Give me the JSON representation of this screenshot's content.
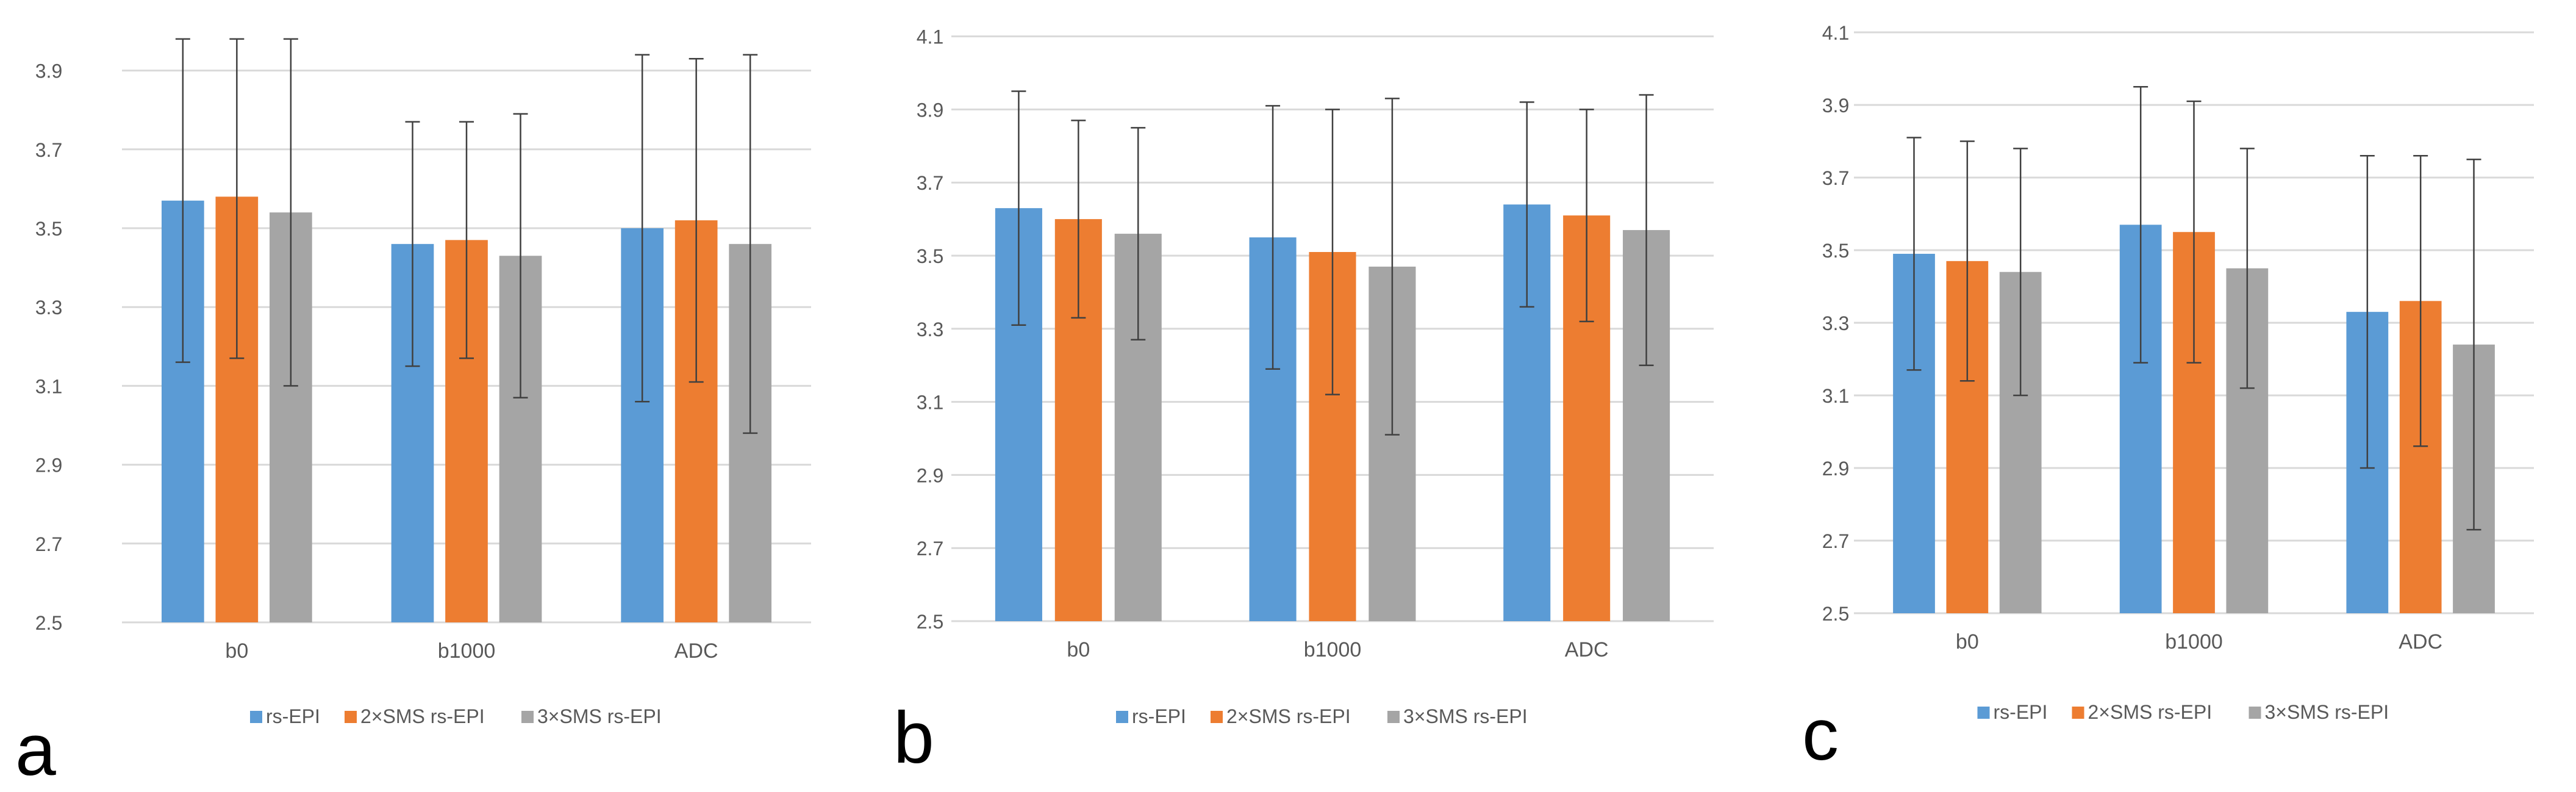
{
  "colors": {
    "series": [
      "#5B9BD5",
      "#ED7D31",
      "#A5A5A5"
    ],
    "grid": "#D9D9D9",
    "axis_text": "#595959",
    "error_bar": "#404040"
  },
  "chart_data": [
    {
      "type": "bar",
      "panel_label": "a",
      "categories": [
        "b0",
        "b1000",
        "ADC"
      ],
      "series": [
        {
          "name": "rs-EPI",
          "values": [
            3.57,
            3.46,
            3.5
          ],
          "err_low": [
            3.16,
            3.15,
            3.06
          ],
          "err_high": [
            3.98,
            3.77,
            3.94
          ]
        },
        {
          "name": "2×SMS rs-EPI",
          "values": [
            3.58,
            3.47,
            3.52
          ],
          "err_low": [
            3.17,
            3.17,
            3.11
          ],
          "err_high": [
            3.98,
            3.77,
            3.93
          ]
        },
        {
          "name": "3×SMS rs-EPI",
          "values": [
            3.54,
            3.43,
            3.46
          ],
          "err_low": [
            3.1,
            3.07,
            2.98
          ],
          "err_high": [
            3.98,
            3.79,
            3.94
          ]
        }
      ],
      "yticks": [
        "2.5",
        "2.7",
        "2.9",
        "3.1",
        "3.3",
        "3.5",
        "3.7",
        "3.9"
      ],
      "ylim": [
        2.5,
        4.0
      ],
      "grid": true,
      "legend": "bottom"
    },
    {
      "type": "bar",
      "panel_label": "b",
      "categories": [
        "b0",
        "b1000",
        "ADC"
      ],
      "series": [
        {
          "name": "rs-EPI",
          "values": [
            3.63,
            3.55,
            3.64
          ],
          "err_low": [
            3.31,
            3.19,
            3.36
          ],
          "err_high": [
            3.95,
            3.91,
            3.92
          ]
        },
        {
          "name": "2×SMS rs-EPI",
          "values": [
            3.6,
            3.51,
            3.61
          ],
          "err_low": [
            3.33,
            3.12,
            3.32
          ],
          "err_high": [
            3.87,
            3.9,
            3.9
          ]
        },
        {
          "name": "3×SMS rs-EPI",
          "values": [
            3.56,
            3.47,
            3.57
          ],
          "err_low": [
            3.27,
            3.01,
            3.2
          ],
          "err_high": [
            3.85,
            3.93,
            3.94
          ]
        }
      ],
      "yticks": [
        "2.5",
        "2.7",
        "2.9",
        "3.1",
        "3.3",
        "3.5",
        "3.7",
        "3.9",
        "4.1"
      ],
      "ylim": [
        2.5,
        4.1
      ],
      "grid": true,
      "legend": "bottom"
    },
    {
      "type": "bar",
      "panel_label": "c",
      "categories": [
        "b0",
        "b1000",
        "ADC"
      ],
      "series": [
        {
          "name": "rs-EPI",
          "values": [
            3.49,
            3.57,
            3.33
          ],
          "err_low": [
            3.17,
            3.19,
            2.9
          ],
          "err_high": [
            3.81,
            3.95,
            3.76
          ]
        },
        {
          "name": "2×SMS rs-EPI",
          "values": [
            3.47,
            3.55,
            3.36
          ],
          "err_low": [
            3.14,
            3.19,
            2.96
          ],
          "err_high": [
            3.8,
            3.91,
            3.76
          ]
        },
        {
          "name": "3×SMS rs-EPI",
          "values": [
            3.44,
            3.45,
            3.24
          ],
          "err_low": [
            3.1,
            3.12,
            2.73
          ],
          "err_high": [
            3.78,
            3.78,
            3.75
          ]
        }
      ],
      "yticks": [
        "2.5",
        "2.7",
        "2.9",
        "3.1",
        "3.3",
        "3.5",
        "3.7",
        "3.9",
        "4.1"
      ],
      "ylim": [
        2.5,
        4.1
      ],
      "grid": true,
      "legend": "bottom"
    }
  ]
}
